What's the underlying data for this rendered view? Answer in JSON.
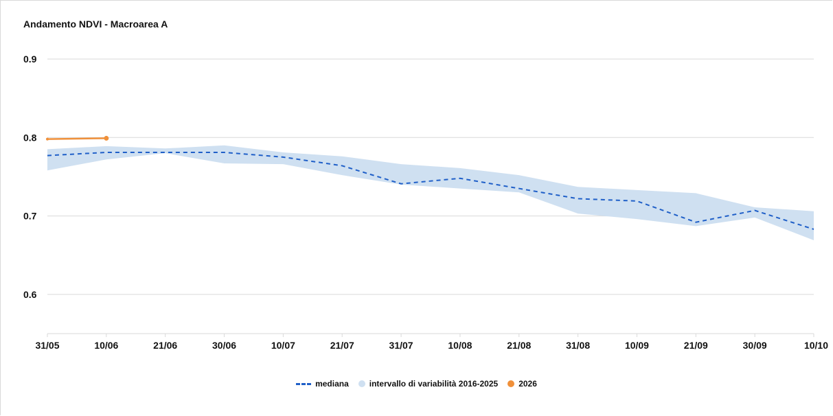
{
  "chart_title": "Andamento NDVI - Macroarea A",
  "legend": {
    "median_label": "mediana",
    "band_label": "intervallo di variabilità 2016-2025",
    "current_label": "2026"
  },
  "colors": {
    "median": "#1f5fc8",
    "band": "#cfe0f1",
    "current": "#f0903a",
    "grid": "#d9d9d9",
    "axis_text": "#111111"
  },
  "chart_data": {
    "type": "line",
    "title": "Andamento NDVI - Macroarea A",
    "xlabel": "",
    "ylabel": "",
    "ylim": [
      0.55,
      0.9
    ],
    "y_ticks": [
      "0.6",
      "0.7",
      "0.8",
      "0.9"
    ],
    "categories": [
      "31/05",
      "10/06",
      "21/06",
      "30/06",
      "10/07",
      "21/07",
      "31/07",
      "10/08",
      "21/08",
      "31/08",
      "10/09",
      "21/09",
      "30/09",
      "10/10"
    ],
    "grid": true,
    "legend_position": "bottom",
    "series": [
      {
        "name": "mediana",
        "style": "dashed",
        "values": [
          0.777,
          0.781,
          0.781,
          0.781,
          0.775,
          0.764,
          0.741,
          0.748,
          0.735,
          0.722,
          0.719,
          0.692,
          0.707,
          0.683
        ]
      },
      {
        "name": "intervallo di variabilità 2016-2025",
        "style": "band",
        "upper": [
          0.785,
          0.789,
          0.786,
          0.79,
          0.781,
          0.776,
          0.766,
          0.761,
          0.752,
          0.737,
          0.733,
          0.729,
          0.711,
          0.706
        ],
        "lower": [
          0.758,
          0.772,
          0.78,
          0.767,
          0.766,
          0.752,
          0.74,
          0.735,
          0.73,
          0.703,
          0.696,
          0.687,
          0.698,
          0.669
        ]
      },
      {
        "name": "2026",
        "style": "line-markers",
        "values": [
          0.798,
          0.799,
          null,
          null,
          null,
          null,
          null,
          null,
          null,
          null,
          null,
          null,
          null,
          null
        ]
      }
    ]
  }
}
